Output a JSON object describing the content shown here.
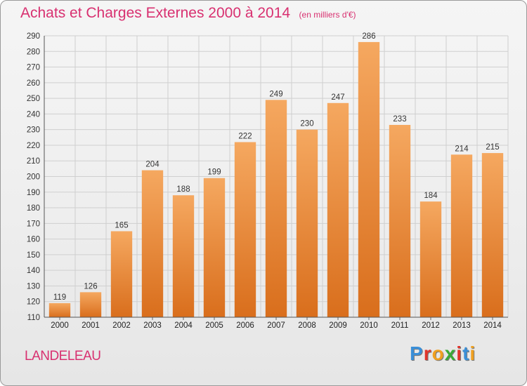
{
  "header": {
    "title": "Achats et Charges Externes 2000 à 2014",
    "subtitle": "(en milliers d'€)"
  },
  "commune": "LANDELEAU",
  "logo": {
    "text": "Proxiti",
    "letters": [
      "P",
      "r",
      "o",
      "x",
      "i",
      "t",
      "i"
    ],
    "colors": [
      "#3a8fd8",
      "#e0352b",
      "#f0a020",
      "#3aaa35",
      "#e0352b",
      "#3a8fd8",
      "#f0a020"
    ]
  },
  "colors": {
    "title": "#d83070",
    "bar_top": "#f5a860",
    "bar_bottom": "#d96e1c",
    "grid": "#cfcfcf"
  },
  "chart_data": {
    "type": "bar",
    "title": "Achats et Charges Externes 2000 à 2014",
    "subtitle": "(en milliers d'€)",
    "categories": [
      "2000",
      "2001",
      "2002",
      "2003",
      "2004",
      "2005",
      "2006",
      "2007",
      "2008",
      "2009",
      "2010",
      "2011",
      "2012",
      "2013",
      "2014"
    ],
    "values": [
      119,
      126,
      165,
      204,
      188,
      199,
      222,
      249,
      230,
      247,
      286,
      233,
      184,
      214,
      215
    ],
    "ylim": [
      110,
      290
    ],
    "yticks": [
      110,
      120,
      130,
      140,
      150,
      160,
      170,
      180,
      190,
      200,
      210,
      220,
      230,
      240,
      250,
      260,
      270,
      280,
      290
    ],
    "grid": true,
    "xlabel": "",
    "ylabel": ""
  }
}
